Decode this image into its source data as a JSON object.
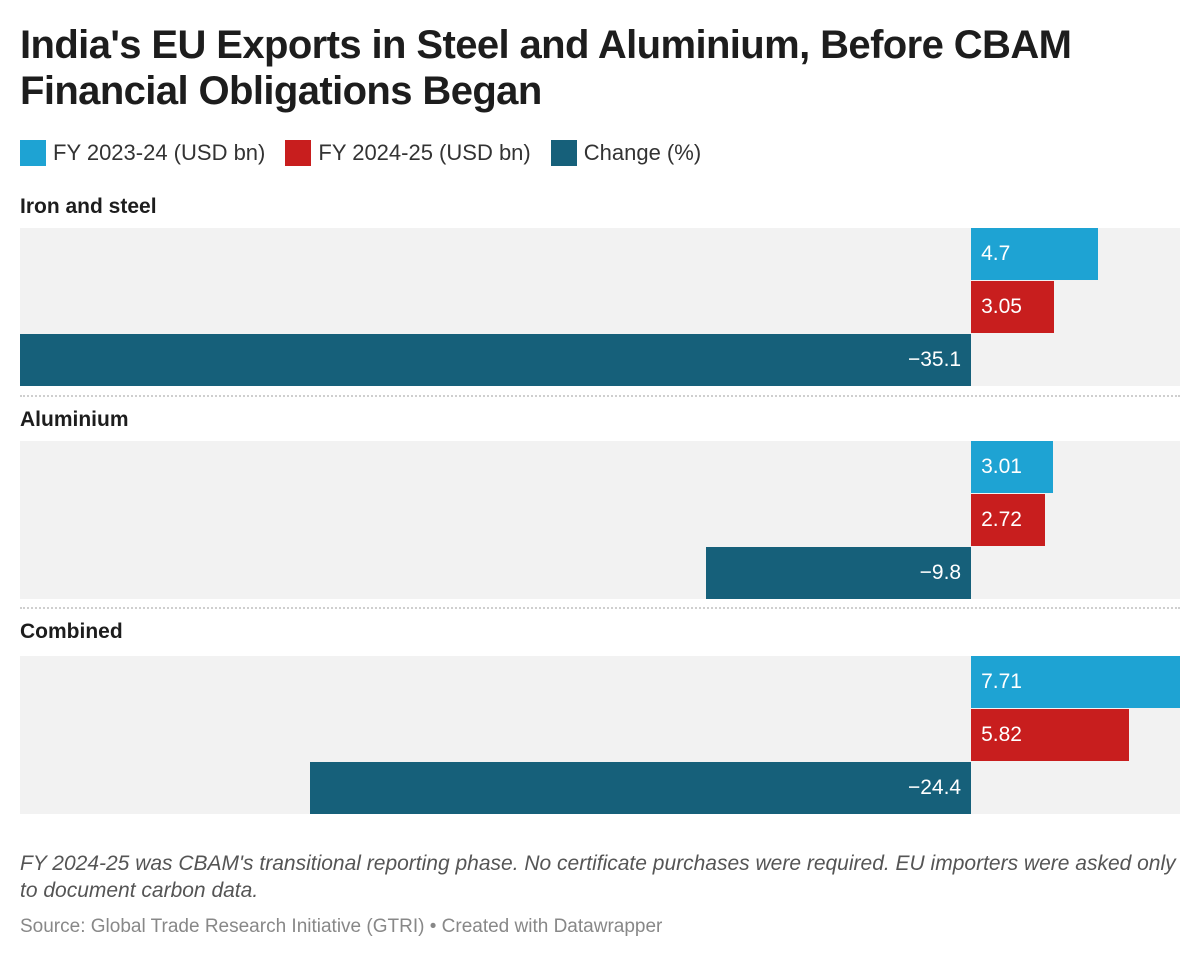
{
  "chart_data": {
    "type": "bar",
    "orientation": "horizontal",
    "title": "India's EU Exports in Steel and Aluminium, Before CBAM Financial Obligations Began",
    "categories": [
      "Iron and steel",
      "Aluminium",
      "Combined"
    ],
    "series": [
      {
        "name": "FY 2023-24 (USD bn)",
        "values": [
          4.7,
          3.01,
          7.71
        ],
        "labels": [
          "4.7",
          "3.01",
          "7.71"
        ],
        "color": "#1ea3d3"
      },
      {
        "name": "FY 2024-25 (USD bn)",
        "values": [
          3.05,
          2.72,
          5.82
        ],
        "labels": [
          "3.05",
          "2.72",
          "5.82"
        ],
        "color": "#c81e1e"
      },
      {
        "name": "Change (%)",
        "values": [
          -35.1,
          -9.8,
          -24.4
        ],
        "labels": [
          "−35.1",
          "−9.8",
          "−24.4"
        ],
        "color": "#16607a"
      }
    ],
    "xlim": [
      -35.1,
      7.71
    ],
    "legend_position": "top-left",
    "note": "FY 2024-25 was CBAM's transitional reporting phase. No certificate purchases were required. EU importers were asked only to document carbon data.",
    "source": "Source: Global Trade Research Initiative (GTRI) • Created with Datawrapper"
  }
}
